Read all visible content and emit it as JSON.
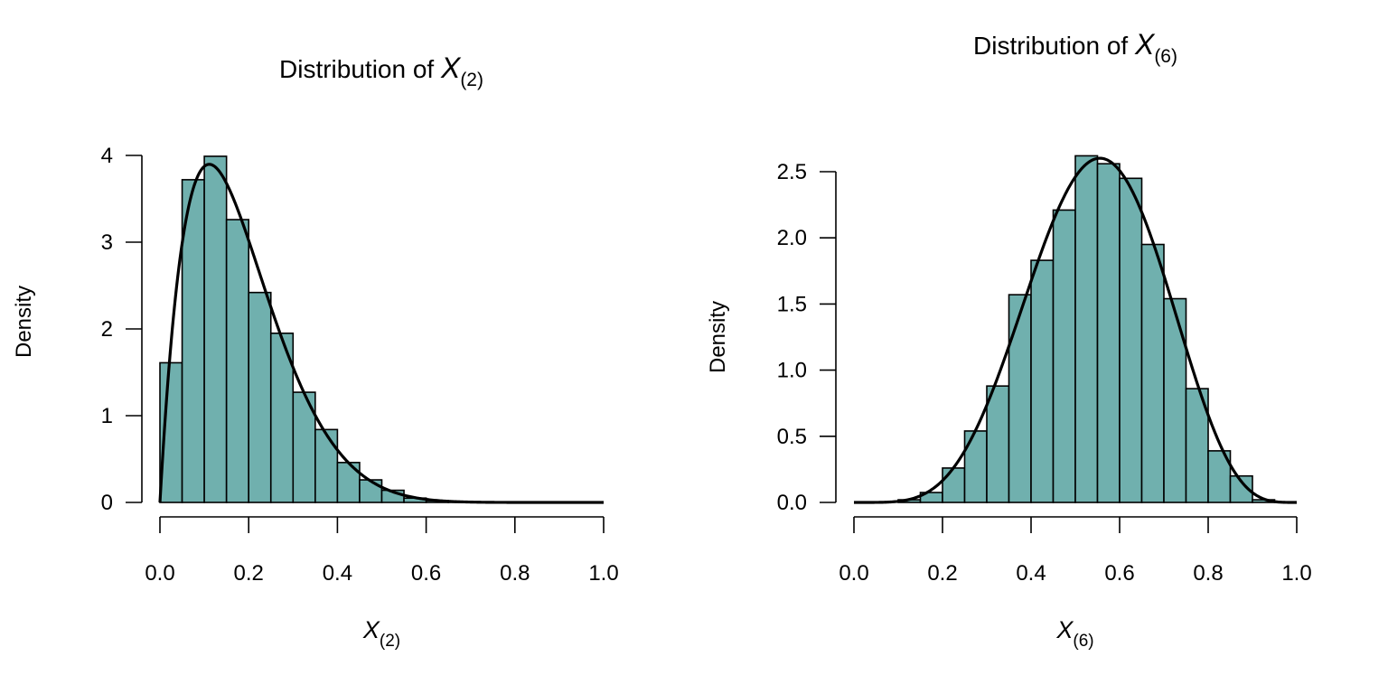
{
  "chart_data": [
    {
      "type": "bar",
      "title": {
        "prefix": "Distribution of ",
        "symbol": "X",
        "subscript": "(2)"
      },
      "xlabel": {
        "symbol": "X",
        "subscript": "(2)"
      },
      "ylabel": "Density",
      "xlim": [
        0,
        1
      ],
      "ylim": [
        0,
        4
      ],
      "xticks": [
        "0.0",
        "0.2",
        "0.4",
        "0.6",
        "0.8",
        "1.0"
      ],
      "yticks": [
        "0",
        "1",
        "2",
        "3",
        "4"
      ],
      "bin_width": 0.05,
      "bin_start": 0,
      "values": [
        1.61,
        3.72,
        3.99,
        3.26,
        2.42,
        1.95,
        1.27,
        0.84,
        0.46,
        0.26,
        0.14,
        0.05,
        0.02,
        0.01,
        0,
        0,
        0,
        0,
        0,
        0
      ],
      "curve": {
        "distribution": "beta",
        "a": 2,
        "b": 9
      },
      "bar_color": "#70b0ae",
      "grid": false
    },
    {
      "type": "bar",
      "title": {
        "prefix": "Distribution of ",
        "symbol": "X",
        "subscript": "(6)"
      },
      "xlabel": {
        "symbol": "X",
        "subscript": "(6)"
      },
      "ylabel": "Density",
      "xlim": [
        0,
        1
      ],
      "ylim": [
        0,
        2.5
      ],
      "xticks": [
        "0.0",
        "0.2",
        "0.4",
        "0.6",
        "0.8",
        "1.0"
      ],
      "yticks": [
        "0.0",
        "0.5",
        "1.0",
        "1.5",
        "2.0",
        "2.5"
      ],
      "bin_width": 0.05,
      "bin_start": 0,
      "values": [
        0,
        0,
        0.02,
        0.075,
        0.26,
        0.54,
        0.88,
        1.57,
        1.83,
        2.21,
        2.62,
        2.56,
        2.45,
        1.95,
        1.54,
        0.86,
        0.39,
        0.2,
        0.02,
        0
      ],
      "curve": {
        "distribution": "beta",
        "a": 6,
        "b": 5
      },
      "bar_color": "#70b0ae",
      "grid": false
    }
  ]
}
